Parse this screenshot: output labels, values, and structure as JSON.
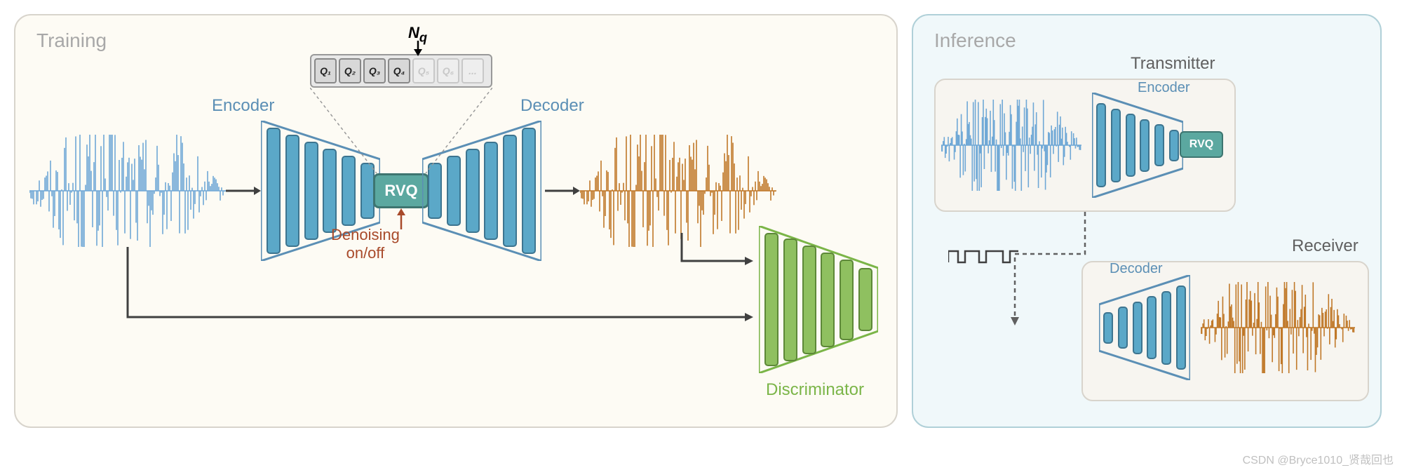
{
  "diagram_type": "flowchart",
  "background_color": "#ffffff",
  "training": {
    "title": "Training",
    "title_color": "#a8a8a8",
    "panel_border": "#d8d4cc",
    "panel_bg": "#fdfbf4",
    "encoder_label": "Encoder",
    "encoder_color": "#5b8fb5",
    "decoder_label": "Decoder",
    "decoder_color": "#5b8fb5",
    "rvq_label": "RVQ",
    "rvq_bg": "#5ba8a0",
    "rvq_border": "#3d7570",
    "denoising_label": "Denoising\non/off",
    "denoising_color": "#a84a2a",
    "discriminator_label": "Discriminator",
    "discriminator_color": "#7bb548",
    "nq_label": "Nq",
    "q_boxes": [
      "Q₁",
      "Q₂",
      "Q₃",
      "Q₄",
      "Q₅",
      "Q₆",
      "..."
    ],
    "q_active_count": 4,
    "q_border": "#888888",
    "q_inactive_color": "#c8c8c8",
    "q_bg": "#e0e0e0",
    "input_wave_color": "#6fa8d6",
    "output_wave_color": "#c07828",
    "encoder_bar_color": "#5ba8c8",
    "encoder_bar_border": "#3d7590",
    "decoder_bar_color": "#5ba8c8",
    "decoder_bar_border": "#3d7590",
    "disc_bar_color": "#8fc060",
    "disc_bar_border": "#5d8838",
    "encoder_bar_heights": [
      180,
      160,
      140,
      120,
      100,
      80
    ],
    "decoder_bar_heights": [
      80,
      100,
      120,
      140,
      160,
      180
    ],
    "disc_bar_heights": [
      190,
      175,
      155,
      135,
      115,
      90
    ],
    "arrow_color": "#404040"
  },
  "inference": {
    "title": "Inference",
    "title_color": "#a8a8a8",
    "panel_border": "#b0d0d8",
    "panel_bg": "#f0f8fa",
    "transmitter_label": "Transmitter",
    "receiver_label": "Receiver",
    "label_color": "#606060",
    "encoder_label": "Encoder",
    "encoder_color": "#5b8fb5",
    "decoder_label": "Decoder",
    "decoder_color": "#5b8fb5",
    "rvq_label": "RVQ",
    "rvq_bg": "#5ba8a0",
    "input_wave_color": "#6fa8d6",
    "output_wave_color": "#c07828",
    "bar_color": "#5ba8c8",
    "bar_border": "#3d7590",
    "tx_bar_heights": [
      120,
      105,
      90,
      75,
      60,
      45
    ],
    "rx_bar_heights": [
      45,
      60,
      75,
      90,
      105,
      120
    ],
    "bitstream_color": "#404040"
  },
  "watermark": "CSDN @Bryce1010_贤哉回也"
}
